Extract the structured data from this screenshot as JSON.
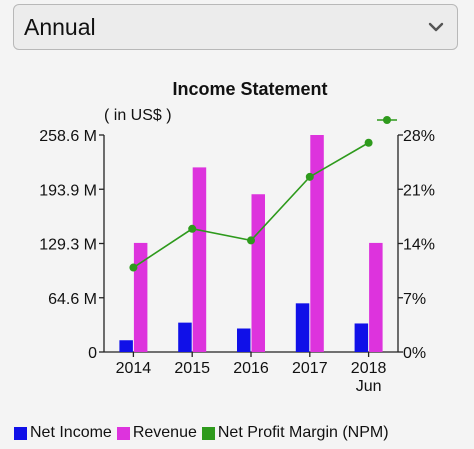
{
  "period_select": {
    "value": "Annual",
    "icon": "chevron-down-icon"
  },
  "chart_data": {
    "type": "bar",
    "title": "Income Statement",
    "unit_label": "( in US$ )",
    "categories": [
      {
        "line1": "2014",
        "line2": ""
      },
      {
        "line1": "2015",
        "line2": ""
      },
      {
        "line1": "2016",
        "line2": ""
      },
      {
        "line1": "2017",
        "line2": ""
      },
      {
        "line1": "2018",
        "line2": "Jun"
      }
    ],
    "y_left": {
      "ticks": [
        "0",
        "64.6 M",
        "129.3 M",
        "193.9 M",
        "258.6 M"
      ],
      "ylim": [
        0,
        258.6
      ],
      "unit": "M US$"
    },
    "y_right": {
      "ticks": [
        "0%",
        "7%",
        "14%",
        "21%",
        "28%"
      ],
      "ylim": [
        0,
        28
      ]
    },
    "series": [
      {
        "name": "Net Income",
        "type": "bar",
        "axis": "left",
        "color": "#1010e8",
        "values": [
          14,
          35,
          28,
          58,
          34
        ]
      },
      {
        "name": "Revenue",
        "type": "bar",
        "axis": "left",
        "color": "#dd33dd",
        "values": [
          130,
          220,
          188,
          258.6,
          130
        ]
      },
      {
        "name": "Net Profit Margin (NPM)",
        "type": "line",
        "axis": "right",
        "color": "#2e9a1c",
        "values": [
          10.9,
          15.9,
          14.4,
          22.6,
          27.0
        ]
      }
    ],
    "legend_position": "bottom",
    "grid": false
  }
}
